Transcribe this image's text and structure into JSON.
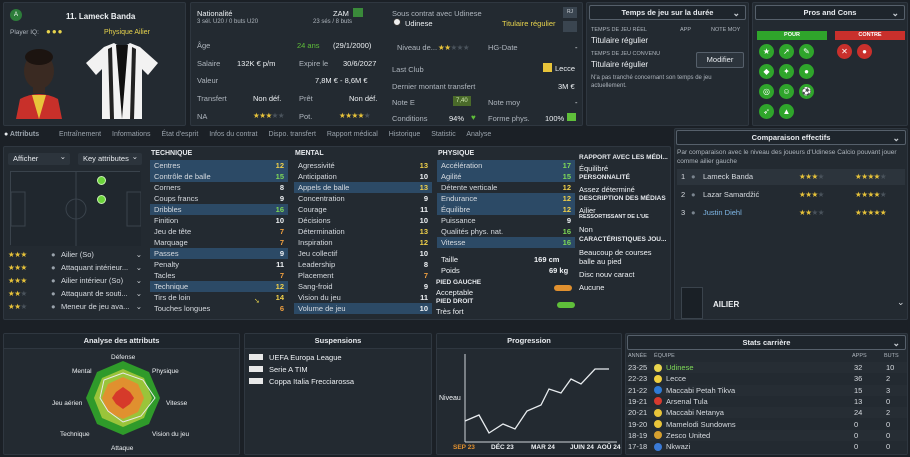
{
  "profile": {
    "number_name": "11. Lameck Banda",
    "player_iq_label": "Player IQ:",
    "role": "Physique Ailier",
    "nationality_label": "Nationalité",
    "nationality_code": "ZAM",
    "nationality_caps": "3 sél. U20 / 0 buts U20",
    "caps": "23 sés / 8 buts",
    "contract_text": "Sous contrat avec Udinese",
    "club": "Udinese",
    "squad_status": "Titulaire régulier",
    "age_label": "Âge",
    "age": "24 ans",
    "dob": "(29/1/2000)",
    "level_label": "Niveau de...",
    "hg_label": "HG-Date",
    "hg_value": "-",
    "salary_label": "Salaire",
    "salary": "132K € p/m",
    "expires_label": "Expire le",
    "expires": "30/6/2027",
    "last_club_label": "Last Club",
    "last_club": "Lecce",
    "value_label": "Valeur",
    "value": "7,8M € - 8,6M €",
    "last_transfer_label": "Dernier montant transfert",
    "last_transfer": "3M €",
    "transfer_label": "Transfert",
    "transfer": "Non déf.",
    "loan_label": "Prêt",
    "loan": "Non déf.",
    "note_e_label": "Note E",
    "note_e": "7,40",
    "note_moy_label": "Note moy",
    "note_moy": "-",
    "na_label": "NA",
    "pot_label": "Pot.",
    "conditions_label": "Conditions",
    "conditions": "94%",
    "form_label": "Forme phys.",
    "form": "100%"
  },
  "tabs": [
    "Attributs",
    "Entraînement",
    "Informations",
    "État d'esprit",
    "Infos du contrat",
    "Dispo. transfert",
    "Rapport médical",
    "Historique",
    "Statistic",
    "Analyse"
  ],
  "playing_time": {
    "title": "Temps de jeu sur la durée",
    "real_label": "TEMPS DE JEU RÉEL",
    "app_label": "APP",
    "note_label": "NOTE MOY",
    "real_value": "Titulaire régulier",
    "agreed_label": "TEMPS DE JEU CONVENU",
    "agreed_value": "Titulaire régulier",
    "modify_label": "Modifier",
    "note_text": "N'a pas tranché concernant son temps de jeu actuellement."
  },
  "pros_cons": {
    "title": "Pros and Cons",
    "pour": "POUR",
    "contre": "CONTRE"
  },
  "left_controls": {
    "afficher": "Afficher",
    "key_attr": "Key attributes"
  },
  "roles": [
    {
      "stars": 3,
      "label": "Ailier (So)"
    },
    {
      "stars": 3,
      "label": "Attaquant intérieur..."
    },
    {
      "stars": 3,
      "label": "Ailier intérieur (So)"
    },
    {
      "stars": 2,
      "label": "Attaquant de souti..."
    },
    {
      "stars": 2,
      "label": "Meneur de jeu ava..."
    }
  ],
  "technique": {
    "header": "TECHNIQUE",
    "rows": [
      {
        "n": "Centres",
        "v": "12",
        "hl": true
      },
      {
        "n": "Contrôle de balle",
        "v": "15",
        "hl": true
      },
      {
        "n": "Corners",
        "v": "8"
      },
      {
        "n": "Coups francs",
        "v": "9"
      },
      {
        "n": "Dribbles",
        "v": "16",
        "hl": true
      },
      {
        "n": "Finition",
        "v": "10"
      },
      {
        "n": "Jeu de tête",
        "v": "7"
      },
      {
        "n": "Marquage",
        "v": "7"
      },
      {
        "n": "Passes",
        "v": "9",
        "hl": true
      },
      {
        "n": "Penalty",
        "v": "11"
      },
      {
        "n": "Tacles",
        "v": "7"
      },
      {
        "n": "Technique",
        "v": "12",
        "hl": true
      },
      {
        "n": "Tirs de loin",
        "v": "14"
      },
      {
        "n": "Touches longues",
        "v": "6"
      }
    ]
  },
  "mental": {
    "header": "MENTAL",
    "rows": [
      {
        "n": "Agressivité",
        "v": "13"
      },
      {
        "n": "Anticipation",
        "v": "10"
      },
      {
        "n": "Appels de balle",
        "v": "13",
        "hl": true
      },
      {
        "n": "Concentration",
        "v": "9"
      },
      {
        "n": "Courage",
        "v": "11"
      },
      {
        "n": "Décisions",
        "v": "10"
      },
      {
        "n": "Détermination",
        "v": "13"
      },
      {
        "n": "Inspiration",
        "v": "12"
      },
      {
        "n": "Jeu collectif",
        "v": "10"
      },
      {
        "n": "Leadership",
        "v": "8"
      },
      {
        "n": "Placement",
        "v": "7"
      },
      {
        "n": "Sang-froid",
        "v": "9"
      },
      {
        "n": "Vision du jeu",
        "v": "11"
      },
      {
        "n": "Volume de jeu",
        "v": "10",
        "hl": true
      }
    ]
  },
  "physique": {
    "header": "PHYSIQUE",
    "rows": [
      {
        "n": "Accélération",
        "v": "17",
        "hl": true
      },
      {
        "n": "Agilité",
        "v": "15",
        "hl": true
      },
      {
        "n": "Détente verticale",
        "v": "12"
      },
      {
        "n": "Endurance",
        "v": "12",
        "hl": true
      },
      {
        "n": "Équilibre",
        "v": "12",
        "hl": true
      },
      {
        "n": "Puissance",
        "v": "9"
      },
      {
        "n": "Qualités phys. nat.",
        "v": "16"
      },
      {
        "n": "Vitesse",
        "v": "16",
        "hl": true
      }
    ],
    "height_label": "Taille",
    "height": "169 cm",
    "weight_label": "Poids",
    "weight": "69 kg",
    "left_foot_label": "PIED GAUCHE",
    "left_foot": "Acceptable",
    "right_foot_label": "PIED DROIT",
    "right_foot": "Très fort"
  },
  "report": {
    "title": "RAPPORT AVEC LES MÉDI...",
    "line1": "Équilibré",
    "personality_label": "PERSONNALITÉ",
    "personality": "Assez déterminé",
    "media_label": "DESCRIPTION DES MÉDIAS",
    "media": "Ailier",
    "eu_label": "RESSORTISSANT DE L'UE",
    "eu": "Non",
    "traits_label": "CARACTÉRISTIQUES JOU...",
    "trait1a": "Beaucoup de courses",
    "trait1b": "balle au pied",
    "trait2": "Disc nouv caract",
    "trait3": "Aucune"
  },
  "comparison": {
    "title": "Comparaison effectifs",
    "desc": "Par comparaison avec le niveau des joueurs d'Udinese Calcio pouvant jouer comme ailier gauche",
    "players": [
      {
        "rank": "1",
        "name": "Lameck Banda",
        "ca": 3,
        "pa": 4
      },
      {
        "rank": "2",
        "name": "Lazar Samardžić",
        "ca": 3,
        "pa": 4
      },
      {
        "rank": "3",
        "name": "Justin Diehl",
        "ca": 2,
        "pa": 5
      }
    ],
    "position": "AILIER"
  },
  "analysis": {
    "title": "Analyse des attributs",
    "labels": [
      "Défense",
      "Physique",
      "Vitesse",
      "Vision du jeu",
      "Attaque",
      "Technique",
      "Jeu aérien",
      "Mental"
    ]
  },
  "suspensions": {
    "title": "Suspensions",
    "items": [
      "UEFA Europa League",
      "Serie A TIM",
      "Coppa Italia Frecciarossa"
    ]
  },
  "progression": {
    "title": "Progression",
    "ylabel": "Niveau",
    "xlabels": [
      "SEP 23",
      "DÉC 23",
      "MAR 24",
      "JUIN 24",
      "AOÛ 24"
    ]
  },
  "career": {
    "title": "Stats carrière",
    "h_year": "ANNÉE",
    "h_team": "ÉQUIPE",
    "h_apps": "APPS",
    "h_goals": "BUTS",
    "rows": [
      {
        "year": "23-25",
        "team": "Udinese",
        "apps": "32",
        "goals": "10",
        "color": "#e8d44d",
        "hl": true
      },
      {
        "year": "22-23",
        "team": "Lecce",
        "apps": "36",
        "goals": "2",
        "color": "#f0d040"
      },
      {
        "year": "21-22",
        "team": "Maccabi Petah Tikva",
        "apps": "15",
        "goals": "3",
        "color": "#2f7bd6"
      },
      {
        "year": "19-21",
        "team": "Arsenal Tula",
        "apps": "13",
        "goals": "0",
        "color": "#d63a2f"
      },
      {
        "year": "20-21",
        "team": "Maccabi Netanya",
        "apps": "24",
        "goals": "2",
        "color": "#e8c43a"
      },
      {
        "year": "19-20",
        "team": "Mamelodi Sundowns",
        "apps": "0",
        "goals": "0",
        "color": "#e8c43a"
      },
      {
        "year": "18-19",
        "team": "Zesco United",
        "apps": "0",
        "goals": "0",
        "color": "#d6a02f"
      },
      {
        "year": "17-18",
        "team": "Nkwazi",
        "apps": "0",
        "goals": "0",
        "color": "#3a7ad6"
      }
    ]
  }
}
